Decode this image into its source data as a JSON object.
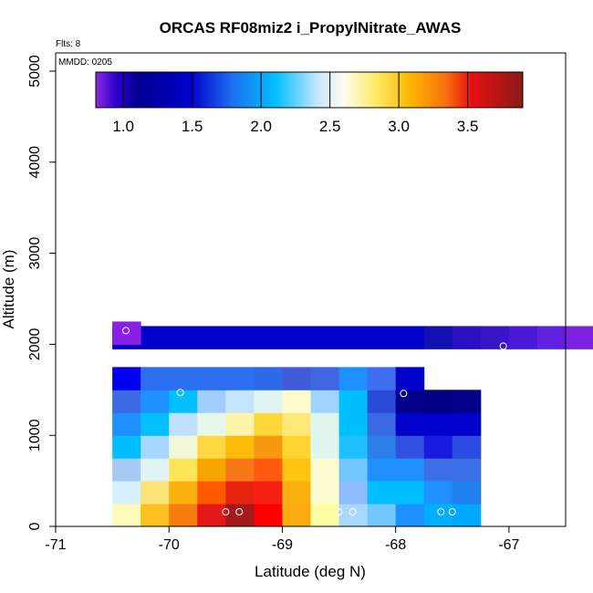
{
  "chart_data": {
    "type": "heatmap",
    "title": "ORCAS RF08miz2 i_PropylNitrate_AWAS",
    "xlabel": "Latitude (deg N)",
    "ylabel": "Altitude (m)",
    "annotations": [
      "Flts: 8",
      "MMDD: 0205"
    ],
    "xlim": [
      -71,
      -66.5
    ],
    "ylim": [
      0,
      5200
    ],
    "x_ticks": [
      -71,
      -70,
      -69,
      -68,
      -67
    ],
    "x_tick_labels": [
      "-71",
      "-70",
      "-69",
      "-68",
      "-67"
    ],
    "y_ticks": [
      0,
      1000,
      2000,
      3000,
      4000,
      5000
    ],
    "y_tick_labels": [
      "0",
      "1000",
      "2000",
      "3000",
      "4000",
      "5000"
    ],
    "colorbar": {
      "min": 0.8,
      "max": 3.9,
      "ticks": [
        1.0,
        1.5,
        2.0,
        2.5,
        3.0,
        3.5
      ],
      "tick_labels": [
        "1.0",
        "1.5",
        "2.0",
        "2.5",
        "3.0",
        "3.5"
      ]
    },
    "cell_width": 0.25,
    "cell_height": 250,
    "cell_colors": {
      "10": [
        "#0000d0"
      ],
      "11": [
        "#8a20e6"
      ],
      "12": [
        "#0000f0",
        "#2b6ef0",
        "#2b6ef0",
        "#2b6ef0",
        "#2b6ef0",
        "#2d6ae8",
        "#3e5cd8",
        "#3f66e0",
        "#1f90ff",
        "#3e6ef0",
        "#0000cd"
      ],
      "15": [
        "#5a2bd0"
      ],
      "16": [
        "#0000cd",
        "#0000cd",
        "#0000cd",
        "#0000cd",
        "#0000cd",
        "#0000cd",
        "#0000cd",
        "#0000cd",
        "#0000cd",
        "#0000cd",
        "#0000cd",
        "#1010b0",
        "#2a10c0",
        "#3a15c8",
        "#4a18d8",
        "#6020e0",
        "#7a22e0"
      ],
      "f": [
        "#3a6ae4",
        "#1e90ff",
        "#00bfff",
        "#a0cffe",
        "#c4e4fe",
        "#e0f4f4",
        "#fefccc",
        "#a0d4fe",
        "#00bfff",
        "#2a4ad8",
        "#00008b",
        "#000080",
        "#00008b"
      ],
      "e": [
        "#1f8fff",
        "#00c0ff",
        "#bfe0fe",
        "#e8f8e8",
        "#fef4a8",
        "#fed838",
        "#fee878",
        "#e0f6ee",
        "#00bfff",
        "#3a6ae4",
        "#0000cd",
        "#0000cd",
        "#0000cd"
      ],
      "d": [
        "#00bfff",
        "#a4d8fe",
        "#f0f8d8",
        "#fed840",
        "#fcba0a",
        "#f8980e",
        "#fed430",
        "#e0f6f0",
        "#20c0fe",
        "#2d7fe8",
        "#3050e0",
        "#1a1ae0",
        "#2a4ae0"
      ],
      "c": [
        "#a6c9f6",
        "#e0f4f4",
        "#fee458",
        "#f8a400",
        "#f87818",
        "#ff5a10",
        "#fec410",
        "#fcfcd0",
        "#70c8fe",
        "#1f90ff",
        "#1e90ff",
        "#3a70e4",
        "#3a70e4"
      ],
      "b": [
        "#d8f0fe",
        "#fee478",
        "#fcb010",
        "#ff5a00",
        "#e82410",
        "#f82010",
        "#fcb010",
        "#fefcd0",
        "#8cbcfe",
        "#00bfff",
        "#00bfff",
        "#1e90ff",
        "#2080f0"
      ],
      "a": [
        "#fefcb8",
        "#fcc020",
        "#f87c10",
        "#e41818",
        "#a41a1a",
        "#ff0000",
        "#fcac10",
        "#fefca0",
        "#a8d8fe",
        "#70c8fe",
        "#1e90ff",
        "#00b0ff",
        "#00a8ff"
      ]
    },
    "markers": [
      {
        "x": -70.38,
        "y": 2150
      },
      {
        "x": -69.9,
        "y": 1470
      },
      {
        "x": -67.93,
        "y": 1460
      },
      {
        "x": -67.05,
        "y": 1980
      },
      {
        "x": -69.5,
        "y": 160
      },
      {
        "x": -69.38,
        "y": 160
      },
      {
        "x": -68.5,
        "y": 160
      },
      {
        "x": -68.38,
        "y": 160
      },
      {
        "x": -67.6,
        "y": 160
      },
      {
        "x": -67.5,
        "y": 160
      }
    ]
  }
}
